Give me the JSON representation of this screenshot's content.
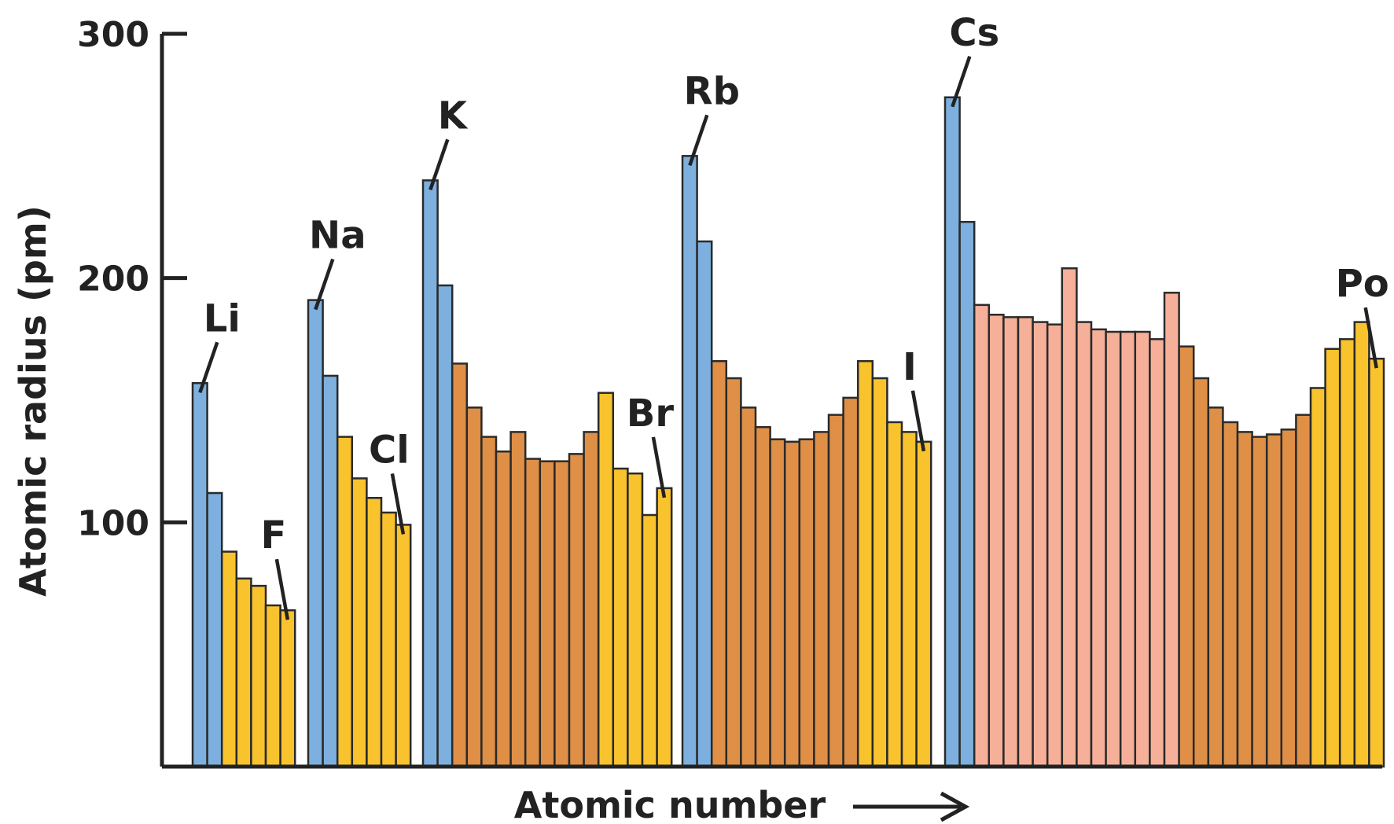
{
  "chart_data": {
    "type": "bar",
    "xlabel": "Atomic number",
    "ylabel": "Atomic radius (pm)",
    "ylim": [
      0,
      300
    ],
    "yticks": [
      100,
      200,
      300
    ],
    "legend": "none",
    "grid": false,
    "colors": {
      "alkali": "#7DB0DE",
      "transition": "#DF8F46",
      "lanthanide": "#F6B09A",
      "main": "#F9C32E"
    },
    "series": [
      {
        "values": [
          157,
          112,
          88,
          77,
          74,
          66,
          64
        ],
        "groups": [
          "alkali",
          "alkali",
          "main",
          "main",
          "main",
          "main",
          "main"
        ]
      },
      {
        "values": [
          191,
          160,
          135,
          118,
          110,
          104,
          99
        ],
        "groups": [
          "alkali",
          "alkali",
          "main",
          "main",
          "main",
          "main",
          "main"
        ]
      },
      {
        "values": [
          240,
          197,
          165,
          147,
          135,
          129,
          137,
          126,
          125,
          125,
          128,
          137,
          153,
          122,
          120,
          103,
          114
        ],
        "groups": [
          "alkali",
          "alkali",
          "transition",
          "transition",
          "transition",
          "transition",
          "transition",
          "transition",
          "transition",
          "transition",
          "transition",
          "transition",
          "main",
          "main",
          "main",
          "main",
          "main"
        ]
      },
      {
        "values": [
          250,
          215,
          166,
          159,
          147,
          139,
          134,
          133,
          134,
          137,
          144,
          151,
          166,
          159,
          141,
          137,
          133
        ],
        "groups": [
          "alkali",
          "alkali",
          "transition",
          "transition",
          "transition",
          "transition",
          "transition",
          "transition",
          "transition",
          "transition",
          "transition",
          "transition",
          "main",
          "main",
          "main",
          "main",
          "main"
        ]
      },
      {
        "values": [
          274,
          223,
          189,
          185,
          184,
          184,
          182,
          181,
          204,
          182,
          179,
          178,
          178,
          178,
          175,
          194,
          172,
          159,
          147,
          141,
          137,
          135,
          136,
          138,
          144,
          155,
          171,
          175,
          182,
          167
        ],
        "groups": [
          "alkali",
          "alkali",
          "lanthanide",
          "lanthanide",
          "lanthanide",
          "lanthanide",
          "lanthanide",
          "lanthanide",
          "lanthanide",
          "lanthanide",
          "lanthanide",
          "lanthanide",
          "lanthanide",
          "lanthanide",
          "lanthanide",
          "lanthanide",
          "transition",
          "transition",
          "transition",
          "transition",
          "transition",
          "transition",
          "transition",
          "transition",
          "transition",
          "main",
          "main",
          "main",
          "main",
          "main"
        ]
      }
    ],
    "annotations": [
      {
        "text": "Li",
        "group": 0,
        "index": 0
      },
      {
        "text": "F",
        "group": 0,
        "index": 6
      },
      {
        "text": "Na",
        "group": 1,
        "index": 0
      },
      {
        "text": "Cl",
        "group": 1,
        "index": 6
      },
      {
        "text": "K",
        "group": 2,
        "index": 0
      },
      {
        "text": "Br",
        "group": 2,
        "index": 16
      },
      {
        "text": "Rb",
        "group": 3,
        "index": 0
      },
      {
        "text": "I",
        "group": 3,
        "index": 16
      },
      {
        "text": "Cs",
        "group": 4,
        "index": 0
      },
      {
        "text": "Po",
        "group": 4,
        "index": 29
      }
    ]
  }
}
